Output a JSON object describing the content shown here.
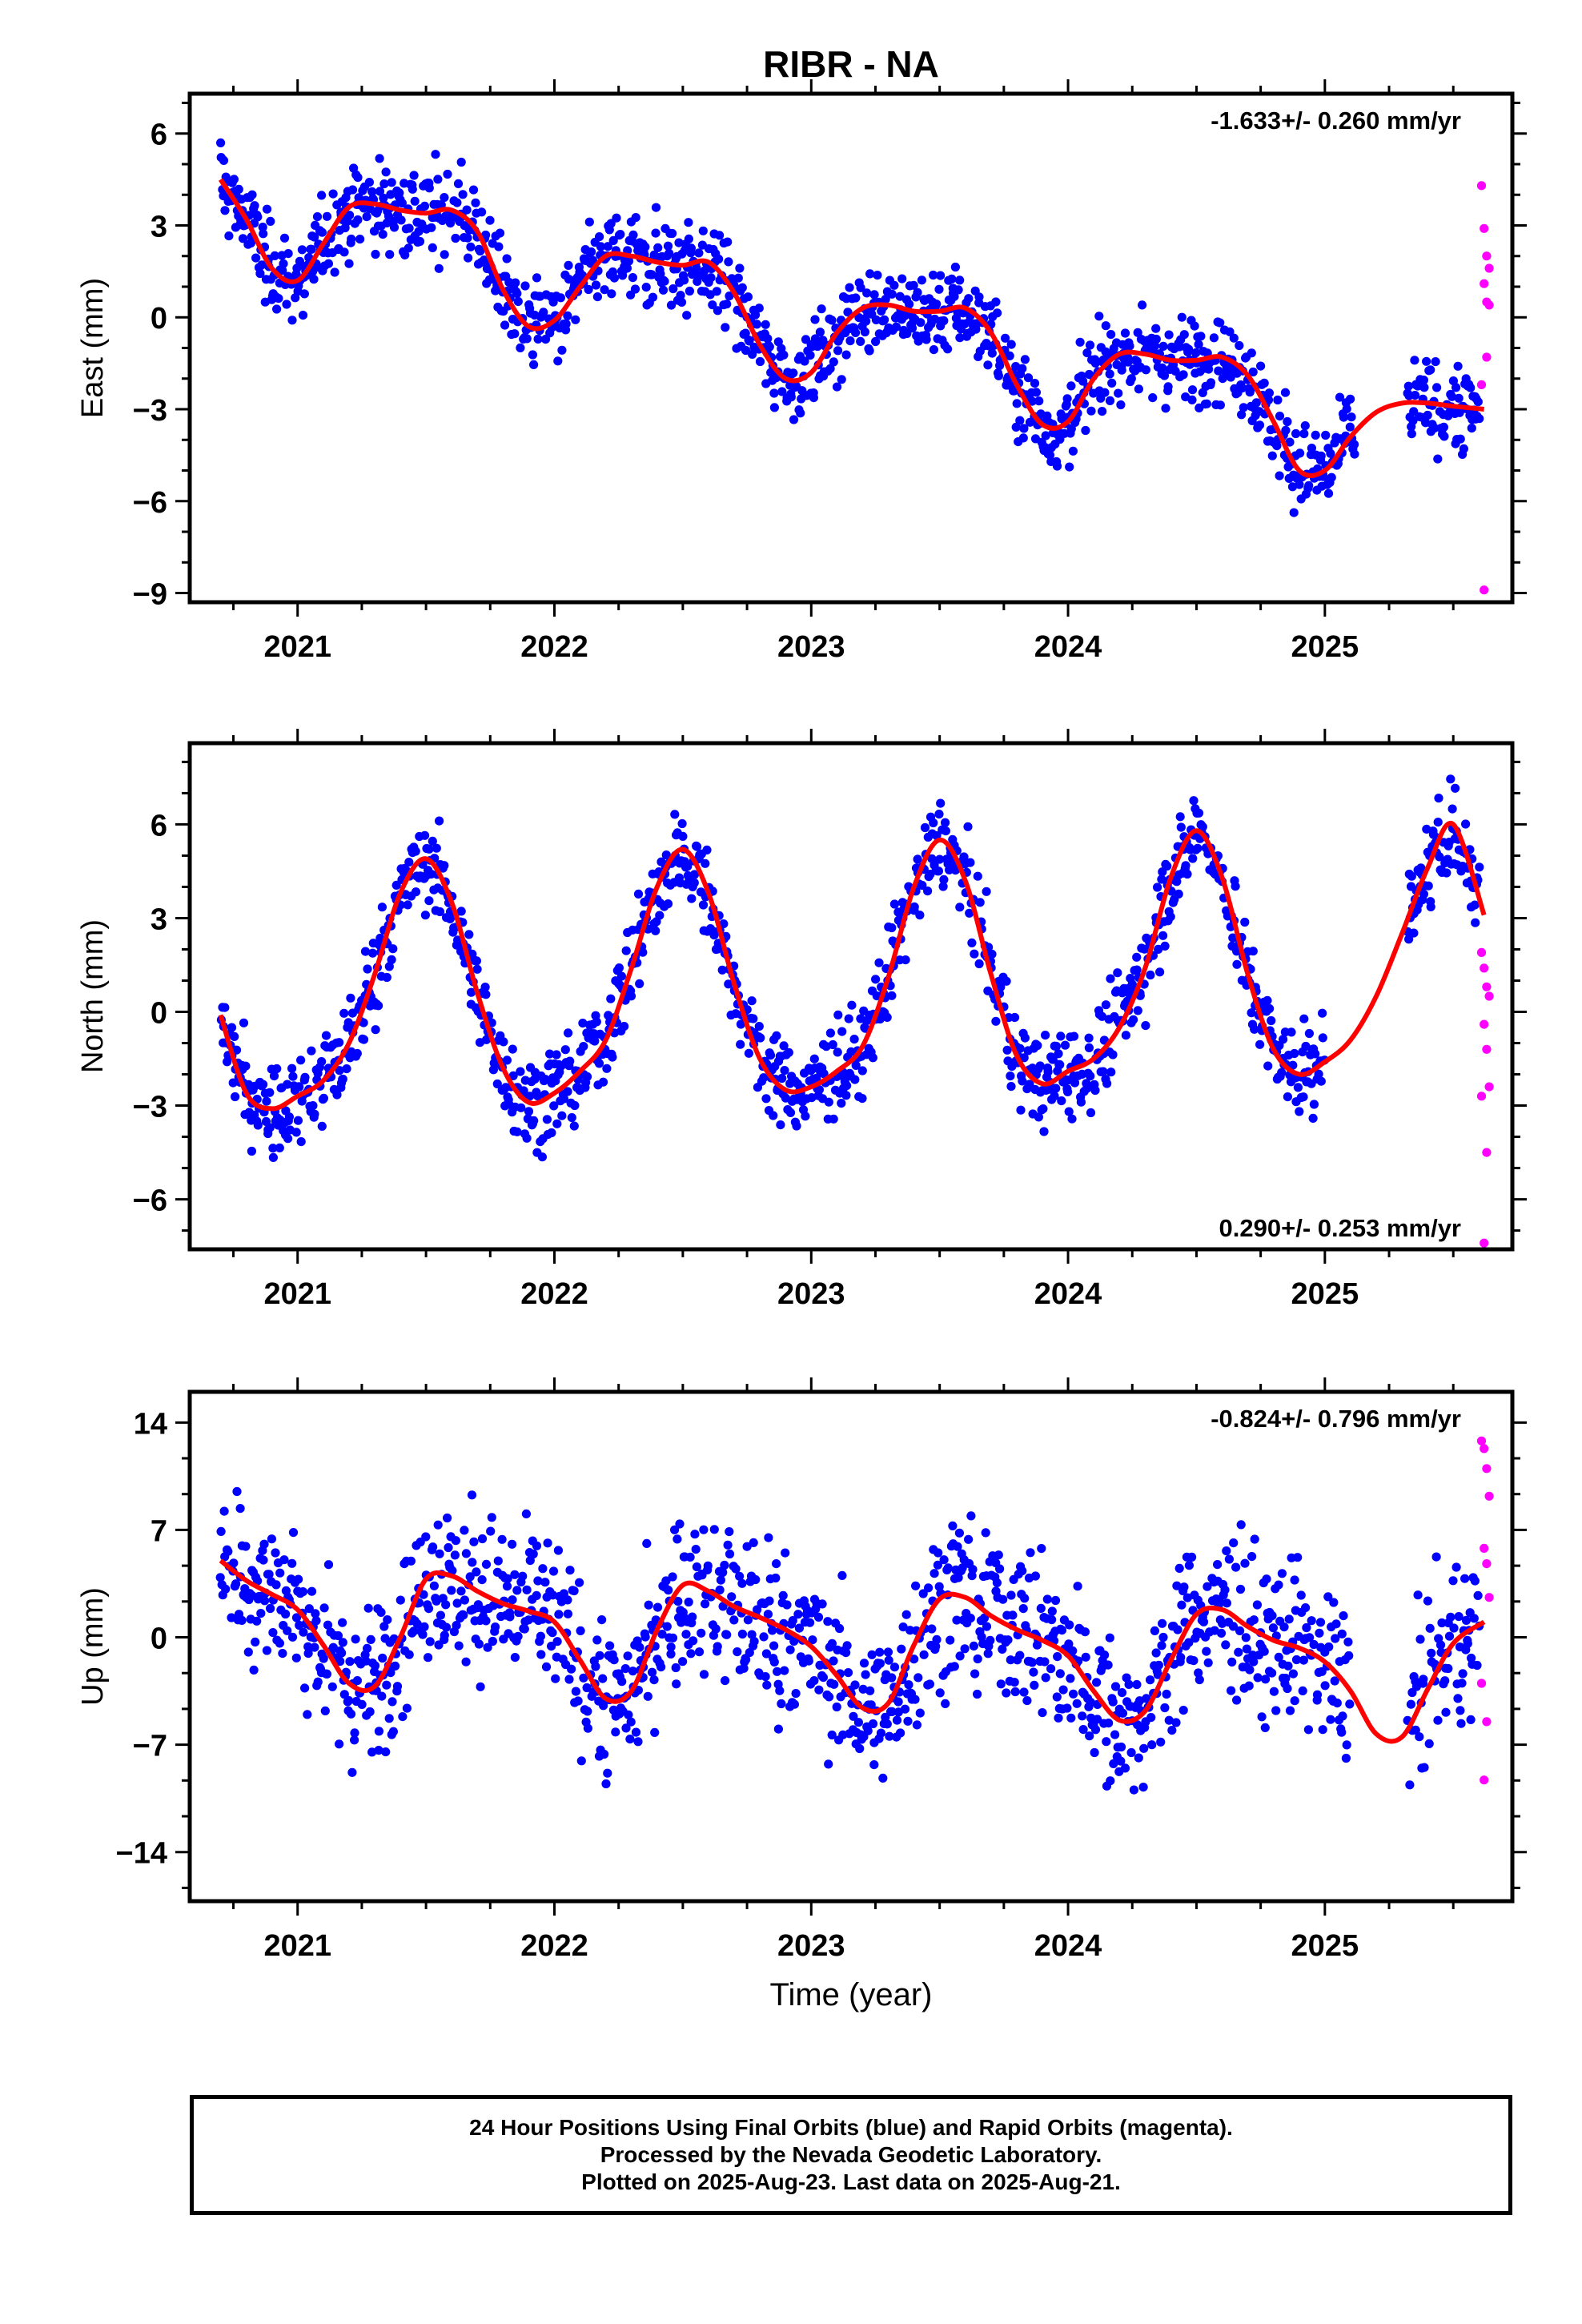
{
  "title": "RIBR - NA",
  "caption": [
    "24 Hour Positions Using Final Orbits (blue) and Rapid Orbits (magenta).",
    "Processed by the Nevada Geodetic Laboratory.",
    "Plotted on 2025-Aug-23. Last data on 2025-Aug-21."
  ],
  "colors": {
    "final_orbits": "#0000ff",
    "rapid_orbits": "#ff00ff",
    "model_fit": "#ff0000",
    "frame": "#000000"
  },
  "chart_data": [
    {
      "type": "scatter",
      "name": "east",
      "ylabel": "East (mm)",
      "xlabel": "",
      "rate_label": "-1.633+/- 0.260 mm/yr",
      "rate_position": "top-right",
      "xlim": [
        2020.58,
        2025.73
      ],
      "ylim": [
        -9.3,
        7.3
      ],
      "x_ticks": [
        2021,
        2022,
        2023,
        2024,
        2025
      ],
      "y_ticks": [
        6,
        3,
        0,
        -3,
        -6,
        -9
      ],
      "x_tick_labels": [
        "2021",
        "2022",
        "2023",
        "2024",
        "2025"
      ],
      "y_tick_labels": [
        "6",
        "3",
        "0",
        "−3",
        "−6",
        "−9"
      ],
      "scatter_spread": 1.0,
      "curve": {
        "name": "model fit",
        "x": [
          2020.7,
          2020.8,
          2020.9,
          2021.0,
          2021.1,
          2021.2,
          2021.3,
          2021.4,
          2021.5,
          2021.6,
          2021.7,
          2021.8,
          2021.9,
          2022.0,
          2022.1,
          2022.2,
          2022.3,
          2022.4,
          2022.5,
          2022.6,
          2022.7,
          2022.8,
          2022.9,
          2023.0,
          2023.1,
          2023.2,
          2023.3,
          2023.4,
          2023.5,
          2023.6,
          2023.7,
          2023.8,
          2023.9,
          2024.0,
          2024.1,
          2024.2,
          2024.3,
          2024.4,
          2024.5,
          2024.6,
          2024.7,
          2024.8,
          2024.9,
          2025.0,
          2025.1,
          2025.2,
          2025.3,
          2025.4,
          2025.5,
          2025.62
        ],
        "y": [
          4.5,
          3.2,
          1.6,
          1.2,
          2.4,
          3.6,
          3.7,
          3.5,
          3.4,
          3.5,
          2.8,
          0.9,
          -0.3,
          -0.1,
          1.0,
          2.0,
          2.0,
          1.8,
          1.7,
          1.8,
          0.8,
          -0.9,
          -2.0,
          -1.8,
          -0.5,
          0.3,
          0.4,
          0.2,
          0.2,
          0.3,
          -0.5,
          -2.2,
          -3.5,
          -3.4,
          -2.0,
          -1.2,
          -1.2,
          -1.4,
          -1.4,
          -1.3,
          -1.9,
          -3.4,
          -5.0,
          -5.0,
          -3.9,
          -3.1,
          -2.8,
          -2.8,
          -2.9,
          -3.0
        ]
      },
      "gaps": [
        [
          2025.12,
          2025.32
        ]
      ],
      "rapid_points": {
        "x": [
          2025.61,
          2025.62,
          2025.63,
          2025.64,
          2025.62,
          2025.63,
          2025.64,
          2025.61,
          2025.63,
          2025.62
        ],
        "y": [
          4.3,
          2.9,
          2.0,
          1.6,
          1.1,
          0.5,
          0.4,
          -2.2,
          -1.3,
          -8.9
        ]
      }
    },
    {
      "type": "scatter",
      "name": "north",
      "ylabel": "North (mm)",
      "xlabel": "",
      "rate_label": "0.290+/- 0.253 mm/yr",
      "rate_position": "bottom-right",
      "xlim": [
        2020.58,
        2025.73
      ],
      "ylim": [
        -7.6,
        8.6
      ],
      "x_ticks": [
        2021,
        2022,
        2023,
        2024,
        2025
      ],
      "y_ticks": [
        6,
        3,
        0,
        -3,
        -6
      ],
      "x_tick_labels": [
        "2021",
        "2022",
        "2023",
        "2024",
        "2025"
      ],
      "y_tick_labels": [
        "6",
        "3",
        "0",
        "−3",
        "−6"
      ],
      "scatter_spread": 1.0,
      "curve": {
        "name": "model fit",
        "x": [
          2020.7,
          2020.8,
          2020.9,
          2021.0,
          2021.1,
          2021.2,
          2021.3,
          2021.4,
          2021.5,
          2021.6,
          2021.7,
          2021.8,
          2021.9,
          2022.0,
          2022.1,
          2022.2,
          2022.3,
          2022.4,
          2022.5,
          2022.6,
          2022.7,
          2022.8,
          2022.9,
          2023.0,
          2023.1,
          2023.2,
          2023.3,
          2023.4,
          2023.5,
          2023.6,
          2023.7,
          2023.8,
          2023.9,
          2024.0,
          2024.1,
          2024.2,
          2024.3,
          2024.4,
          2024.5,
          2024.6,
          2024.7,
          2024.8,
          2024.9,
          2025.0,
          2025.1,
          2025.2,
          2025.3,
          2025.4,
          2025.5,
          2025.62
        ],
        "y": [
          -0.1,
          -2.6,
          -3.1,
          -2.7,
          -2.2,
          -1.0,
          1.2,
          3.8,
          4.9,
          3.5,
          0.6,
          -1.8,
          -2.9,
          -2.6,
          -1.9,
          -0.9,
          1.4,
          4.0,
          5.2,
          3.8,
          0.9,
          -1.5,
          -2.5,
          -2.4,
          -1.9,
          -1.1,
          1.1,
          4.0,
          5.5,
          4.2,
          1.2,
          -1.4,
          -2.3,
          -1.9,
          -1.5,
          -0.5,
          1.4,
          4.3,
          5.8,
          4.3,
          1.2,
          -1.2,
          -2.0,
          -1.6,
          -0.9,
          0.5,
          2.5,
          4.6,
          6.0,
          3.1
        ]
      },
      "gaps": [
        [
          2025.0,
          2025.32
        ]
      ],
      "rapid_points": {
        "x": [
          2025.61,
          2025.62,
          2025.63,
          2025.64,
          2025.62,
          2025.63,
          2025.64,
          2025.61,
          2025.63,
          2025.62
        ],
        "y": [
          1.9,
          1.4,
          0.8,
          0.5,
          -0.4,
          -1.2,
          -2.4,
          -2.7,
          -4.5,
          -7.4
        ]
      }
    },
    {
      "type": "scatter",
      "name": "up",
      "ylabel": "Up (mm)",
      "xlabel": "Time (year)",
      "rate_label": "-0.824+/- 0.796 mm/yr",
      "rate_position": "top-right",
      "xlim": [
        2020.58,
        2025.73
      ],
      "ylim": [
        -17.2,
        16.0
      ],
      "x_ticks": [
        2021,
        2022,
        2023,
        2024,
        2025
      ],
      "y_ticks": [
        14,
        7,
        0,
        -7,
        -14
      ],
      "x_tick_labels": [
        "2021",
        "2022",
        "2023",
        "2024",
        "2025"
      ],
      "y_tick_labels": [
        "14",
        "7",
        "0",
        "−7",
        "−14"
      ],
      "scatter_spread": 3.6,
      "curve": {
        "name": "model fit",
        "x": [
          2020.7,
          2020.8,
          2020.9,
          2021.0,
          2021.1,
          2021.2,
          2021.3,
          2021.4,
          2021.5,
          2021.6,
          2021.7,
          2021.8,
          2021.9,
          2022.0,
          2022.1,
          2022.2,
          2022.3,
          2022.4,
          2022.5,
          2022.6,
          2022.7,
          2022.8,
          2022.9,
          2023.0,
          2023.1,
          2023.2,
          2023.3,
          2023.4,
          2023.5,
          2023.6,
          2023.7,
          2023.8,
          2023.9,
          2024.0,
          2024.1,
          2024.2,
          2024.3,
          2024.4,
          2024.5,
          2024.6,
          2024.7,
          2024.8,
          2024.9,
          2025.0,
          2025.1,
          2025.2,
          2025.3,
          2025.4,
          2025.5,
          2025.62
        ],
        "y": [
          5.0,
          3.7,
          2.8,
          1.8,
          -0.5,
          -3.0,
          -3.2,
          0.0,
          3.8,
          4.0,
          3.0,
          2.2,
          1.7,
          1.0,
          -1.5,
          -4.0,
          -3.5,
          0.5,
          3.4,
          3.0,
          2.0,
          1.3,
          0.5,
          -0.6,
          -2.5,
          -4.6,
          -4.3,
          -0.5,
          2.5,
          2.6,
          1.4,
          0.5,
          -0.2,
          -1.2,
          -3.5,
          -5.4,
          -4.8,
          -1.5,
          1.5,
          1.8,
          0.7,
          -0.2,
          -0.7,
          -1.6,
          -3.5,
          -6.3,
          -6.5,
          -3.4,
          -0.4,
          1.0
        ]
      },
      "gaps": [
        [
          2025.1,
          2025.32
        ]
      ],
      "rapid_points": {
        "x": [
          2025.61,
          2025.62,
          2025.63,
          2025.64,
          2025.62,
          2025.63,
          2025.64,
          2025.61,
          2025.63,
          2025.62
        ],
        "y": [
          12.8,
          12.3,
          11.0,
          9.2,
          5.8,
          4.8,
          2.6,
          -3.0,
          -5.5,
          -9.3
        ]
      }
    }
  ]
}
